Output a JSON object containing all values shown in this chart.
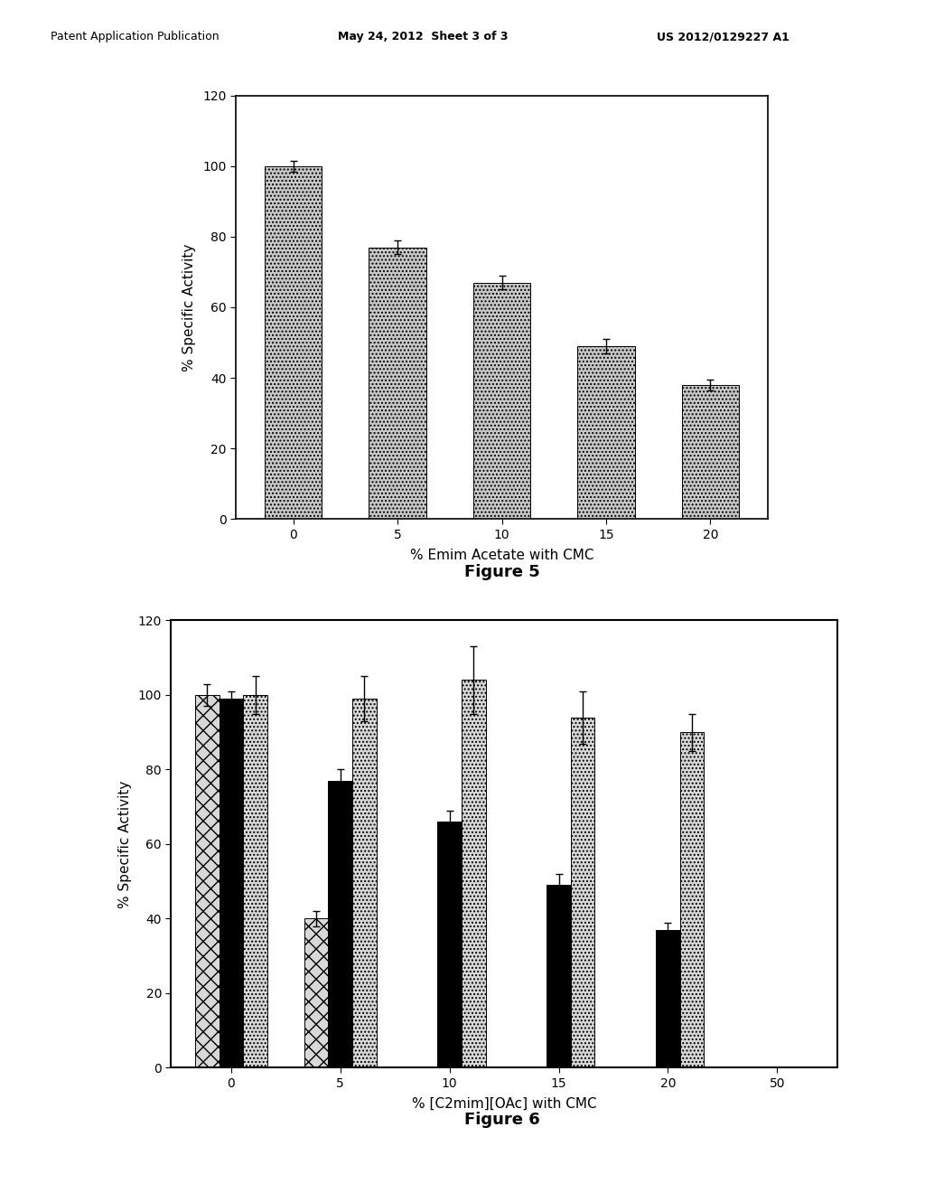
{
  "fig5": {
    "xlabel": "% Emim Acetate with CMC",
    "ylabel": "% Specific Activity",
    "x_labels": [
      "0",
      "5",
      "10",
      "15",
      "20"
    ],
    "values": [
      100,
      77,
      67,
      49,
      38
    ],
    "errors": [
      1.5,
      2.0,
      2.0,
      2.0,
      1.5
    ],
    "ylim": [
      0,
      120
    ],
    "yticks": [
      0,
      20,
      40,
      60,
      80,
      100,
      120
    ]
  },
  "fig6": {
    "xlabel": "% [C2mim][OAc] with CMC",
    "ylabel": "% Specific Activity",
    "x_labels": [
      "0",
      "5",
      "10",
      "15",
      "20",
      "50"
    ],
    "series1_values": [
      100,
      40,
      0,
      0,
      0,
      0
    ],
    "series1_errors": [
      3,
      2,
      0,
      0,
      0,
      0
    ],
    "series1_show": [
      true,
      true,
      false,
      false,
      false,
      false
    ],
    "series2_values": [
      99,
      77,
      66,
      49,
      37,
      0
    ],
    "series2_errors": [
      2,
      3,
      3,
      3,
      2,
      0
    ],
    "series2_show": [
      true,
      true,
      true,
      true,
      true,
      false
    ],
    "series3_values": [
      100,
      99,
      104,
      94,
      90,
      0
    ],
    "series3_errors": [
      5,
      6,
      9,
      7,
      5,
      0
    ],
    "series3_show": [
      true,
      true,
      true,
      true,
      true,
      false
    ],
    "ylim": [
      0,
      120
    ],
    "yticks": [
      0,
      20,
      40,
      60,
      80,
      100,
      120
    ]
  },
  "background_color": "#ffffff",
  "bar_color_dotted": "#c8c8c8",
  "fig5_caption": "Figure 5",
  "fig6_caption": "Figure 6",
  "header_normal": "Patent Application Publication",
  "header_bold1": "May 24, 2012  Sheet 3 of 3",
  "header_bold2": "US 2012/0129227 A1"
}
